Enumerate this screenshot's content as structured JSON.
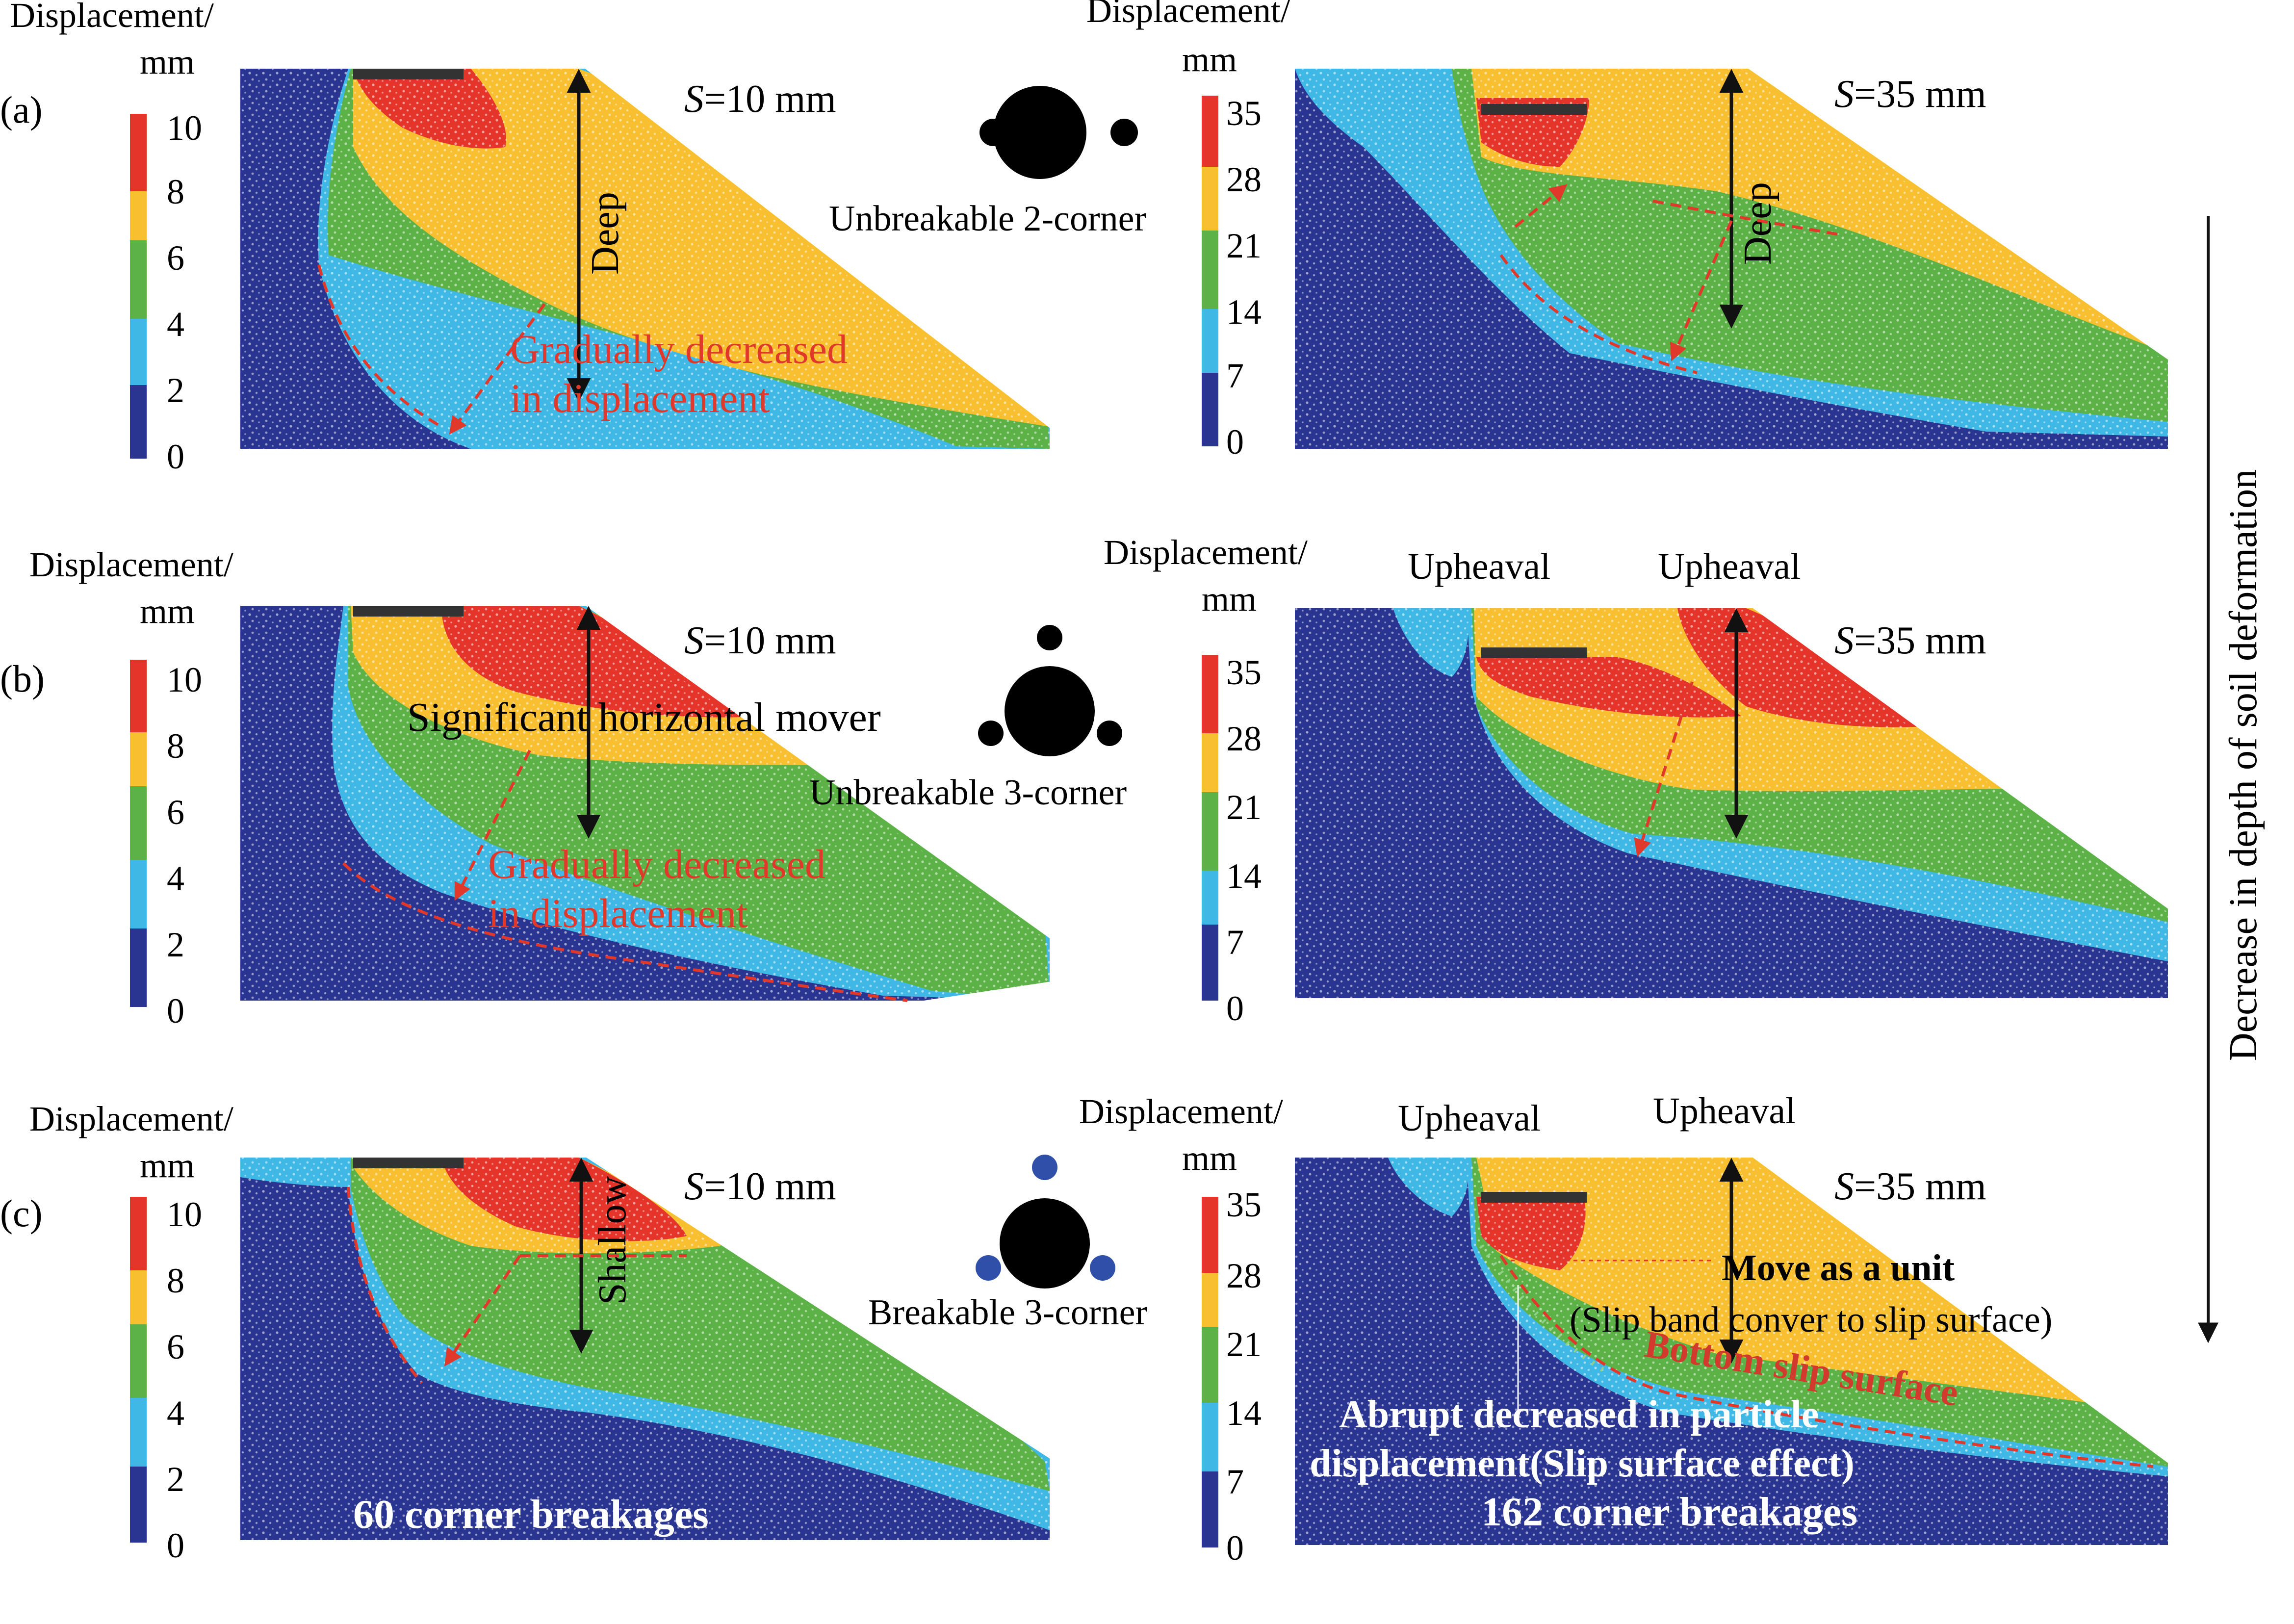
{
  "colors": {
    "blue": "#2a3591",
    "cyan": "#3fb8e6",
    "green": "#5cb246",
    "yellow": "#f8c030",
    "red": "#e5342a",
    "annotation_red": "#e0392b",
    "ink": "#111111"
  },
  "legend_title_line1": "Displacement/",
  "legend_title_line2": "mm",
  "scale_small": [
    "0",
    "2",
    "4",
    "6",
    "8",
    "10"
  ],
  "scale_large": [
    "0",
    "7",
    "14",
    "21",
    "28",
    "35"
  ],
  "right_axis_label": "Decrease in depth of soil deformation",
  "rows": [
    {
      "label": "(a)",
      "left_s_label": "S",
      "left_s_value": "=10 mm",
      "right_s_label": "S",
      "right_s_value": "=35 mm",
      "particle_icon": "unbreakable-2-corner-particle-icon",
      "particle_label": "Unbreakable 2-corner",
      "left_arrow_label": "Deep",
      "right_arrow_label": "Deep",
      "left_annot_line1": "Gradually decreased",
      "left_annot_line2": "in displacement"
    },
    {
      "label": "(b)",
      "left_s_label": "S",
      "left_s_value": "=10 mm",
      "right_s_label": "S",
      "right_s_value": "=35 mm",
      "particle_icon": "unbreakable-3-corner-particle-icon",
      "particle_label": "Unbreakable 3-corner",
      "left_annot_top": "Significant horizontal mover",
      "left_annot_line1": "Gradually decreased",
      "left_annot_line2": "in displacement",
      "upheaval_1": "Upheaval",
      "upheaval_2": "Upheaval"
    },
    {
      "label": "(c)",
      "left_s_label": "S",
      "left_s_value": "=10 mm",
      "right_s_label": "S",
      "right_s_value": "=35 mm",
      "particle_icon": "breakable-3-corner-particle-icon",
      "particle_label": "Breakable 3-corner",
      "left_arrow_label": "Shallow",
      "left_breakages": "60 corner breakages",
      "right_breakages": "162 corner breakages",
      "upheaval_1": "Upheaval",
      "upheaval_2": "Upheaval",
      "move_unit": "Move as a unit",
      "slip_band": "(Slip band conver to slip surface)",
      "bottom_slip": "Bottom slip surface",
      "abrupt_line1": "Abrupt decreased in particle",
      "abrupt_line2": "displacement(Slip surface effect)"
    }
  ]
}
